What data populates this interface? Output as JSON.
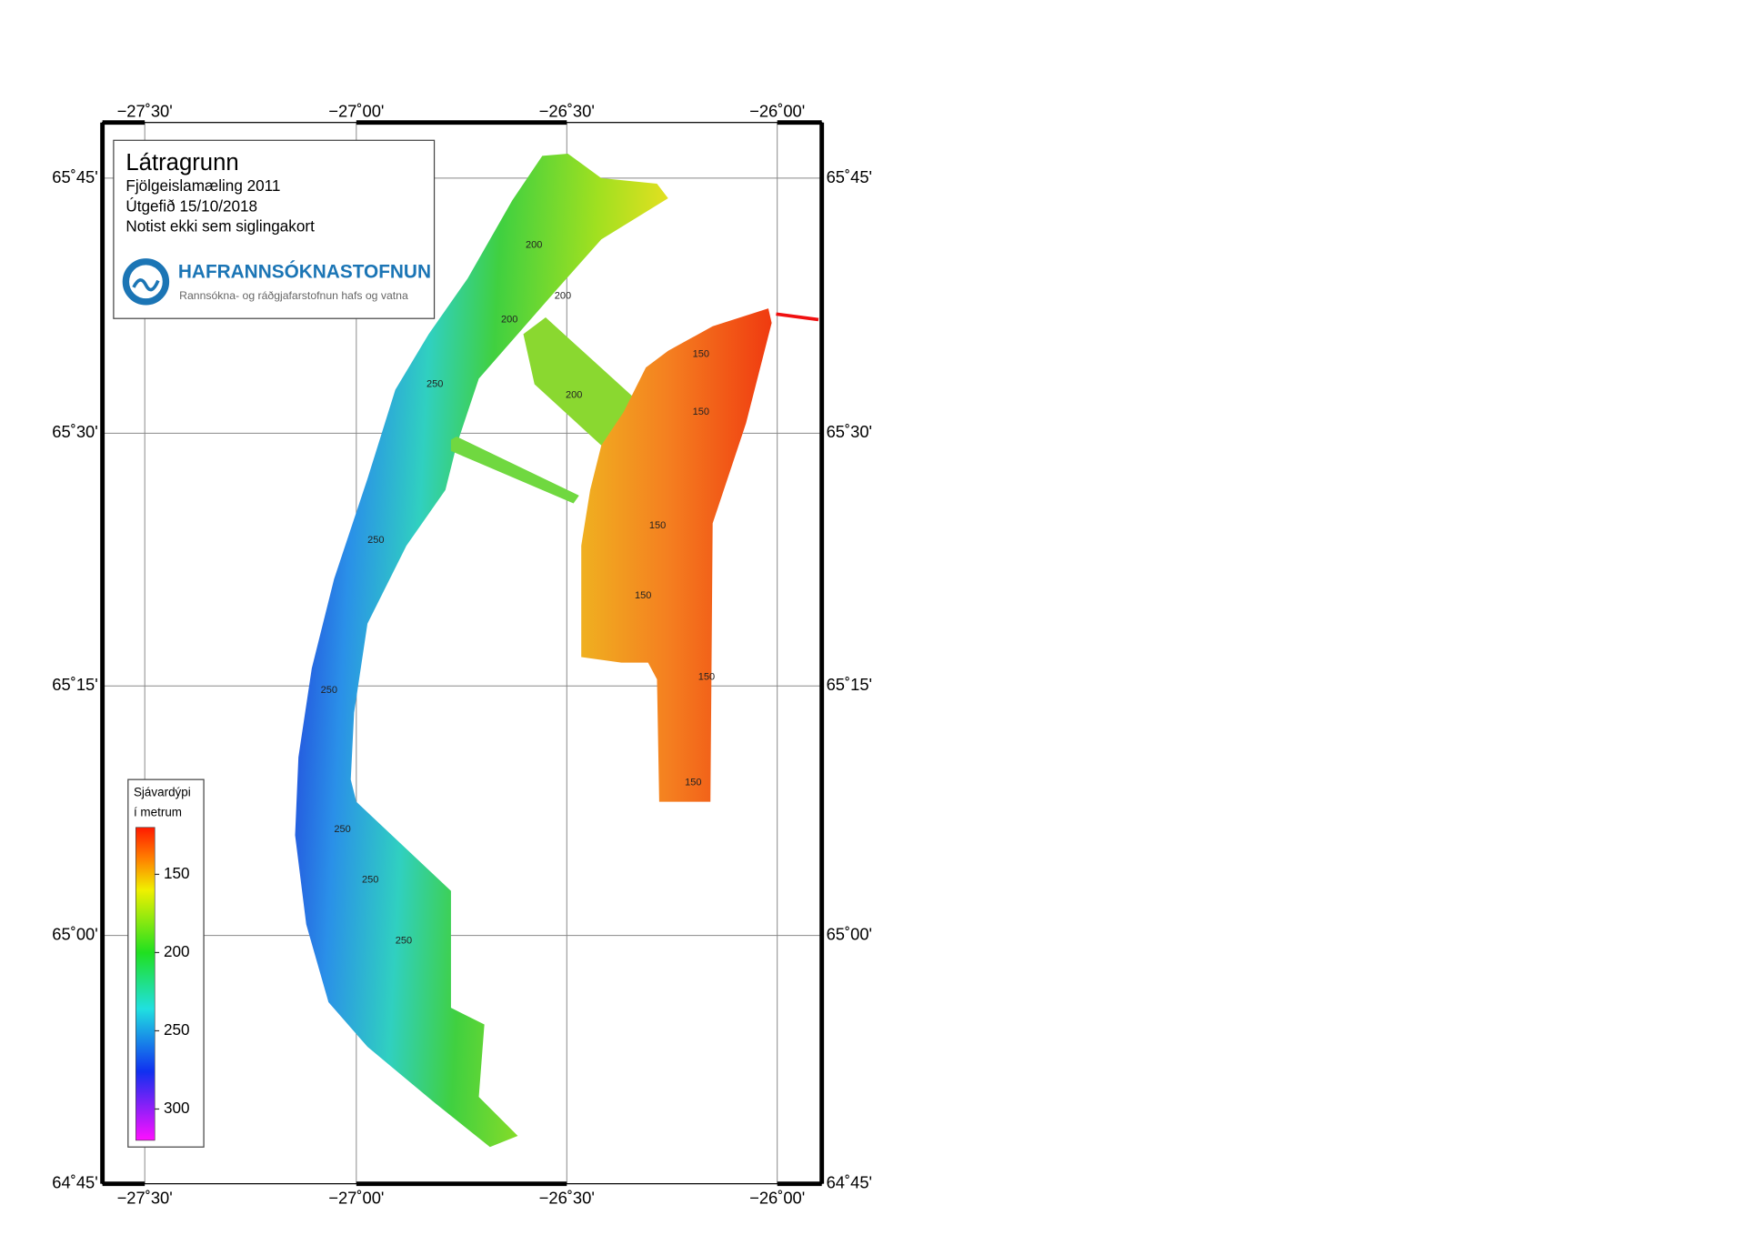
{
  "title": {
    "name": "Látragrunn",
    "lines": [
      "Fjölgeislamæling 2011",
      "Útgefið 15/10/2018",
      "Notist ekki sem siglingakort"
    ]
  },
  "logo": {
    "name": "HAFRANNSÓKNASTOFNUN",
    "subtitle": "Rannsókna- og ráðgjafarstofnun hafs og vatna"
  },
  "axes": {
    "longitude_labels": [
      "−27˚30'",
      "−27˚00'",
      "−26˚30'",
      "−26˚00'"
    ],
    "latitude_labels": [
      "65˚45'",
      "65˚30'",
      "65˚15'",
      "65˚00'",
      "64˚45'"
    ]
  },
  "legend": {
    "title": [
      "Sjávardýpi",
      "í metrum"
    ],
    "lim": [
      120,
      320
    ],
    "ticks": [
      150,
      200,
      250,
      300
    ]
  },
  "contour_labels": [
    "200",
    "200",
    "200",
    "200",
    "250",
    "250",
    "250",
    "250",
    "250",
    "250",
    "150",
    "150",
    "150",
    "150",
    "150",
    "150"
  ]
}
